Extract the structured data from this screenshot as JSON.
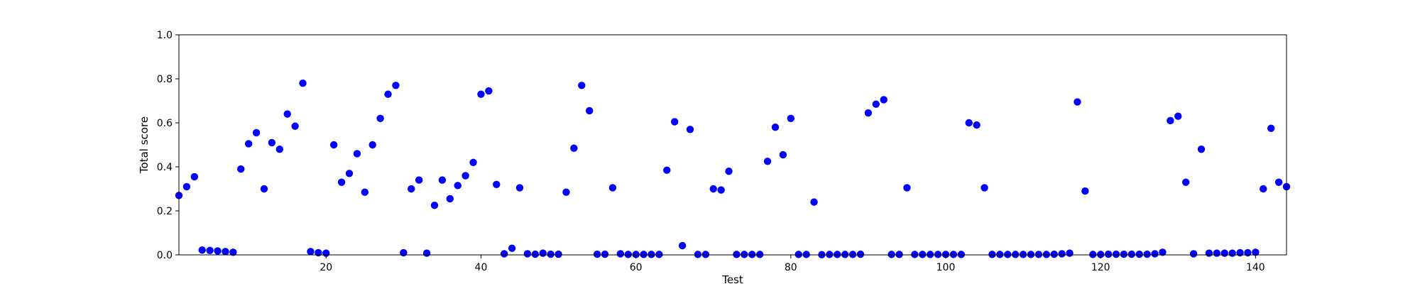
{
  "chart_data": {
    "type": "scatter",
    "title": "",
    "xlabel": "Test",
    "ylabel": "Total score",
    "xlim": [
      1,
      144
    ],
    "ylim": [
      0.0,
      1.0
    ],
    "x_ticks": [
      20,
      40,
      60,
      80,
      100,
      120,
      140
    ],
    "x_tick_labels": [
      "20",
      "40",
      "60",
      "80",
      "100",
      "120",
      "140"
    ],
    "y_ticks": [
      0.0,
      0.2,
      0.4,
      0.6,
      0.8,
      1.0
    ],
    "y_tick_labels": [
      "0.0",
      "0.2",
      "0.4",
      "0.6",
      "0.8",
      "1.0"
    ],
    "grid": false,
    "marker_color": "#0000ff",
    "series": [
      {
        "x": [
          1,
          2,
          3,
          4,
          5,
          6,
          7,
          8,
          9,
          10,
          11,
          12,
          13,
          14,
          15,
          16,
          17,
          18,
          19,
          20,
          21,
          22,
          23,
          24,
          25,
          26,
          27,
          28,
          29,
          30,
          31,
          32,
          33,
          34,
          35,
          36,
          37,
          38,
          39,
          40,
          41,
          42,
          43,
          44,
          45,
          46,
          47,
          48,
          49,
          50,
          51,
          52,
          53,
          54,
          55,
          56,
          57,
          58,
          59,
          60,
          61,
          62,
          63,
          64,
          65,
          66,
          67,
          68,
          69,
          70,
          71,
          72,
          73,
          74,
          75,
          76,
          77,
          78,
          79,
          80,
          81,
          82,
          83,
          84,
          85,
          86,
          87,
          88,
          89,
          90,
          91,
          92,
          93,
          94,
          95,
          96,
          97,
          98,
          99,
          100,
          101,
          102,
          103,
          104,
          105,
          106,
          107,
          108,
          109,
          110,
          111,
          112,
          113,
          114,
          115,
          116,
          117,
          118,
          119,
          120,
          121,
          122,
          123,
          124,
          125,
          126,
          127,
          128,
          129,
          130,
          131,
          132,
          133,
          134,
          135,
          136,
          137,
          138,
          139,
          140,
          141,
          142,
          143,
          144
        ],
        "y": [
          0.27,
          0.31,
          0.355,
          0.022,
          0.02,
          0.018,
          0.015,
          0.012,
          0.39,
          0.505,
          0.555,
          0.3,
          0.51,
          0.48,
          0.64,
          0.585,
          0.78,
          0.015,
          0.01,
          0.008,
          0.5,
          0.33,
          0.37,
          0.46,
          0.285,
          0.5,
          0.62,
          0.73,
          0.77,
          0.01,
          0.3,
          0.34,
          0.008,
          0.225,
          0.34,
          0.255,
          0.315,
          0.36,
          0.42,
          0.73,
          0.745,
          0.32,
          0.005,
          0.03,
          0.305,
          0.005,
          0.003,
          0.008,
          0.003,
          0.003,
          0.285,
          0.485,
          0.77,
          0.655,
          0.003,
          0.003,
          0.305,
          0.005,
          0.002,
          0.002,
          0.002,
          0.002,
          0.002,
          0.385,
          0.605,
          0.042,
          0.57,
          0.002,
          0.002,
          0.3,
          0.295,
          0.38,
          0.002,
          0.002,
          0.002,
          0.002,
          0.425,
          0.58,
          0.455,
          0.62,
          0.002,
          0.002,
          0.24,
          0.001,
          0.002,
          0.002,
          0.002,
          0.002,
          0.003,
          0.645,
          0.685,
          0.705,
          0.002,
          0.002,
          0.305,
          0.002,
          0.002,
          0.002,
          0.002,
          0.002,
          0.002,
          0.002,
          0.6,
          0.59,
          0.305,
          0.002,
          0.002,
          0.002,
          0.002,
          0.002,
          0.002,
          0.002,
          0.002,
          0.003,
          0.005,
          0.008,
          0.695,
          0.29,
          0.002,
          0.002,
          0.003,
          0.003,
          0.003,
          0.003,
          0.003,
          0.003,
          0.005,
          0.012,
          0.61,
          0.63,
          0.33,
          0.005,
          0.48,
          0.008,
          0.008,
          0.008,
          0.008,
          0.01,
          0.01,
          0.012,
          0.3,
          0.575,
          0.33,
          0.31
        ]
      }
    ]
  }
}
